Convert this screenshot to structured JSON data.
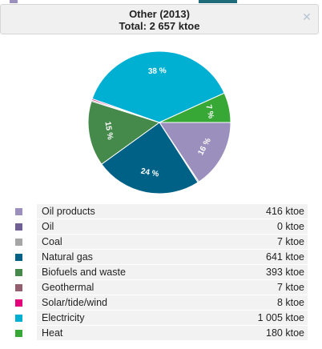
{
  "header": {
    "title": "Other (2013)",
    "total": "Total: 2 657 ktoe",
    "close_icon": "close-icon"
  },
  "chart_data": {
    "type": "pie",
    "slices": [
      {
        "name": "Oil products",
        "value": 416,
        "label": "16 %",
        "color": "#9b8fbd"
      },
      {
        "name": "Oil",
        "value": 0,
        "label": "",
        "color": "#6f5f95"
      },
      {
        "name": "Coal",
        "value": 7,
        "label": "",
        "color": "#a6a6a6"
      },
      {
        "name": "Natural gas",
        "value": 641,
        "label": "24 %",
        "color": "#006186"
      },
      {
        "name": "Biofuels and waste",
        "value": 393,
        "label": "15 %",
        "color": "#45894b"
      },
      {
        "name": "Geothermal",
        "value": 7,
        "label": "",
        "color": "#935e6d"
      },
      {
        "name": "Solar/tide/wind",
        "value": 8,
        "label": "",
        "color": "#e3007a"
      },
      {
        "name": "Electricity",
        "value": 1005,
        "label": "38 %",
        "color": "#00b0d3"
      },
      {
        "name": "Heat",
        "value": 180,
        "label": "7 %",
        "color": "#37a736"
      }
    ]
  },
  "legend": [
    {
      "label": "Oil products",
      "value": "416 ktoe",
      "color": "#9b8fbd"
    },
    {
      "label": "Oil",
      "value": "0 ktoe",
      "color": "#6f5f95"
    },
    {
      "label": "Coal",
      "value": "7 ktoe",
      "color": "#a6a6a6"
    },
    {
      "label": "Natural gas",
      "value": "641 ktoe",
      "color": "#006186"
    },
    {
      "label": "Biofuels and waste",
      "value": "393 ktoe",
      "color": "#45894b"
    },
    {
      "label": "Geothermal",
      "value": "7 ktoe",
      "color": "#935e6d"
    },
    {
      "label": "Solar/tide/wind",
      "value": "8 ktoe",
      "color": "#e3007a"
    },
    {
      "label": "Electricity",
      "value": "1 005 ktoe",
      "color": "#00b0d3"
    },
    {
      "label": "Heat",
      "value": "180 ktoe",
      "color": "#37a736"
    }
  ],
  "top_strip_colors": [
    "#9b8fbd",
    "#006186",
    "#45894b"
  ]
}
